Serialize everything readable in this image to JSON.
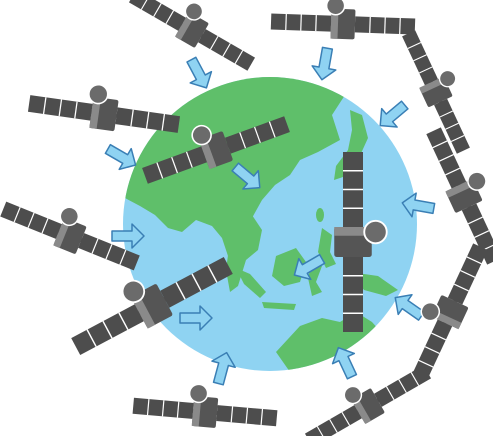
{
  "colors": {
    "background": "#ffffff",
    "ocean": "#8fd3f2",
    "land": "#5fbf6a",
    "satellite_body": "#555555",
    "satellite_light": "#8a8a8a",
    "solar_panel": "#4d4d4d",
    "arrow_fill": "#8fd3f2",
    "arrow_stroke": "#3a7fb5"
  },
  "icons": {
    "globe": "earth-globe-asia-pacific-icon",
    "satellite": "satellite-icon",
    "arrow": "signal-arrow-icon"
  },
  "satellites": [
    {
      "name": "satellite-top-left"
    },
    {
      "name": "satellite-top-center"
    },
    {
      "name": "satellite-top-right"
    },
    {
      "name": "satellite-left-upper"
    },
    {
      "name": "satellite-on-globe-center"
    },
    {
      "name": "satellite-right-upper"
    },
    {
      "name": "satellite-left-middle"
    },
    {
      "name": "satellite-vertical-center"
    },
    {
      "name": "satellite-right-middle"
    },
    {
      "name": "satellite-left-lower"
    },
    {
      "name": "satellite-right-lower"
    },
    {
      "name": "satellite-bottom-center"
    },
    {
      "name": "satellite-bottom-right"
    }
  ]
}
